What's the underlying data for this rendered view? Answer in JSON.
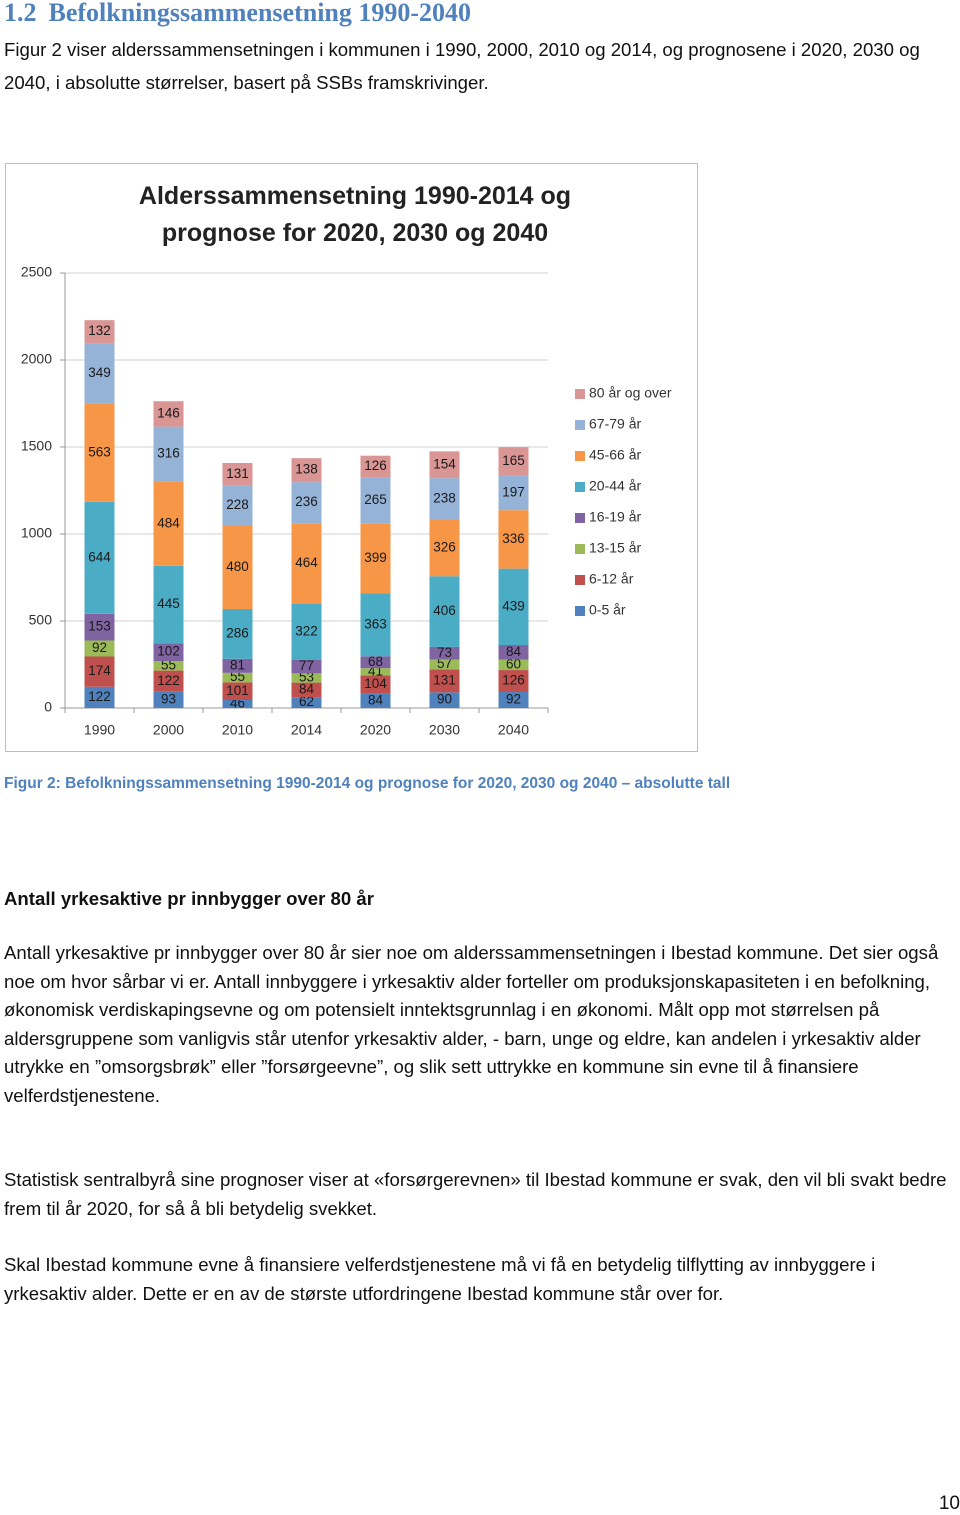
{
  "header": {
    "number": "1.2",
    "title": "Befolkningssammensetning 1990-2040"
  },
  "intro": "Figur 2 viser alderssammensetningen i kommunen i 1990, 2000, 2010 og 2014, og prognosene i 2020, 2030 og 2040, i absolutte størrelser, basert på SSBs framskrivinger.",
  "chart_data": {
    "type": "stacked-bar",
    "title": "Alderssammensetning 1990-2014 og prognose for 2020, 2030 og 2040",
    "categories": [
      "1990",
      "2000",
      "2010",
      "2014",
      "2020",
      "2030",
      "2040"
    ],
    "series": [
      {
        "name": "0-5 år",
        "color": "#4f81bd",
        "values": [
          122,
          93,
          46,
          62,
          84,
          90,
          92
        ]
      },
      {
        "name": "6-12 år",
        "color": "#c0504d",
        "values": [
          174,
          122,
          101,
          84,
          104,
          131,
          126
        ]
      },
      {
        "name": "13-15 år",
        "color": "#9bbb59",
        "values": [
          92,
          55,
          55,
          53,
          41,
          57,
          60
        ]
      },
      {
        "name": "16-19 år",
        "color": "#8064a2",
        "values": [
          153,
          102,
          81,
          77,
          68,
          73,
          84
        ]
      },
      {
        "name": "20-44 år",
        "color": "#4bacc6",
        "values": [
          644,
          445,
          286,
          322,
          363,
          406,
          439
        ]
      },
      {
        "name": "45-66 år",
        "color": "#f79646",
        "values": [
          563,
          484,
          480,
          464,
          399,
          326,
          336
        ]
      },
      {
        "name": "67-79 år",
        "color": "#95b3d7",
        "values": [
          349,
          316,
          228,
          236,
          265,
          238,
          197
        ]
      },
      {
        "name": "80 år og over",
        "color": "#d99694",
        "values": [
          132,
          146,
          131,
          138,
          126,
          154,
          165
        ]
      }
    ],
    "ylim": [
      0,
      2500
    ],
    "yticks": [
      0,
      500,
      1000,
      1500,
      2000,
      2500
    ],
    "grid": true,
    "legend": "right"
  },
  "caption": "Figur 2: Befolkningssammensetning 1990-2014 og prognose for 2020, 2030 og 2040 – absolutte tall",
  "section_heading": "Antall yrkesaktive pr innbygger over 80 år",
  "paragraphs": [
    "Antall yrkesaktive pr innbygger over 80 år sier noe om alderssammensetningen i Ibestad kommune. Det sier også noe om hvor sårbar vi er. Antall innbyggere i yrkesaktiv alder forteller om produksjonskapasiteten i en befolkning, økonomisk verdiskapingsevne og om potensielt inntektsgrunnlag i en økonomi. Målt opp mot størrelsen på aldersgruppene som vanligvis står utenfor yrkesaktiv alder, - barn, unge og eldre, kan andelen i yrkesaktiv alder utrykke en ”omsorgsbrøk” eller ”forsørgeevne”, og slik sett uttrykke en kommune sin evne til å finansiere velferdstjenestene.",
    "Statistisk sentralbyrå sine prognoser viser at «forsørgerevnen» til Ibestad kommune er svak, den vil bli svakt bedre frem til år 2020, for så å bli betydelig svekket.",
    "Skal Ibestad kommune evne å finansiere velferdstjenestene må vi få en betydelig tilflytting av innbyggere i yrkesaktiv alder.  Dette er en av de største utfordringene Ibestad kommune står over for."
  ],
  "page_number": "10"
}
